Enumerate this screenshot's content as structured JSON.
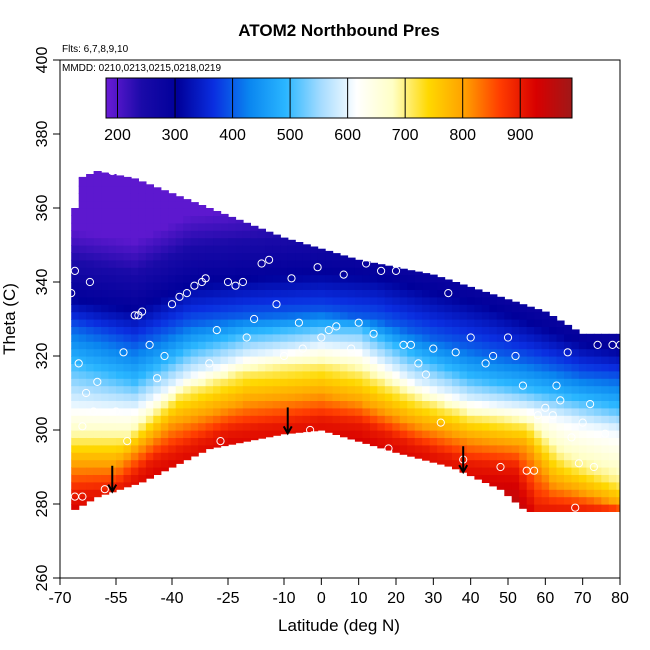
{
  "chart_data": {
    "type": "heatmap",
    "title": "ATOM2 Northbound Pres",
    "notes": [
      "Flts: 6,7,8,9,10",
      "MMDD: 0210,0213,0215,0218,0219"
    ],
    "xlabel": "Latitude (deg N)",
    "ylabel": "Theta (C)",
    "xlim": [
      -70,
      80
    ],
    "ylim": [
      260,
      400
    ],
    "x_ticks": [
      -70,
      -55,
      -40,
      -25,
      -10,
      0,
      10,
      20,
      30,
      40,
      50,
      60,
      70,
      80
    ],
    "y_ticks": [
      260,
      280,
      300,
      320,
      340,
      360,
      380,
      400
    ],
    "colorbar": {
      "range": [
        180,
        990
      ],
      "ticks": [
        200,
        300,
        400,
        500,
        600,
        700,
        800,
        900
      ],
      "colors": [
        "#6a1bd6",
        "#1a0aa8",
        "#00009a",
        "#0a2ee0",
        "#0a86f0",
        "#2ab6ff",
        "#a6dcff",
        "#ffffff",
        "#ffffc6",
        "#ffd800",
        "#ffa000",
        "#ff3c00",
        "#d80000",
        "#a01818"
      ]
    },
    "boundary_top": [
      [
        -67,
        352
      ],
      [
        -65,
        368
      ],
      [
        -60,
        370
      ],
      [
        -50,
        368
      ],
      [
        -30,
        360
      ],
      [
        -10,
        352
      ],
      [
        10,
        346
      ],
      [
        30,
        342
      ],
      [
        45,
        337
      ],
      [
        60,
        332
      ],
      [
        70,
        326
      ],
      [
        80,
        326
      ]
    ],
    "boundary_bottom": [
      [
        -67,
        278
      ],
      [
        -60,
        282
      ],
      [
        -48,
        286
      ],
      [
        -30,
        295
      ],
      [
        -10,
        299
      ],
      [
        0,
        300
      ],
      [
        10,
        297
      ],
      [
        20,
        294
      ],
      [
        35,
        290
      ],
      [
        48,
        284
      ],
      [
        55,
        278
      ],
      [
        80,
        278
      ]
    ],
    "isolines": [
      {
        "level": 300,
        "points": [
          [
            -67,
            336
          ],
          [
            -50,
            333
          ],
          [
            -35,
            340
          ],
          [
            -15,
            342
          ],
          [
            0,
            343
          ],
          [
            15,
            342
          ],
          [
            30,
            338
          ],
          [
            45,
            334
          ],
          [
            55,
            330
          ],
          [
            70,
            324
          ],
          [
            80,
            322
          ]
        ]
      },
      {
        "level": 400,
        "points": [
          [
            -67,
            328
          ],
          [
            -50,
            323
          ],
          [
            -35,
            329
          ],
          [
            -20,
            331
          ],
          [
            0,
            332
          ],
          [
            15,
            330
          ],
          [
            30,
            325
          ],
          [
            45,
            321
          ],
          [
            55,
            319
          ],
          [
            70,
            315
          ],
          [
            80,
            314
          ]
        ]
      },
      {
        "level": 500,
        "points": [
          [
            -67,
            318
          ],
          [
            -50,
            313
          ],
          [
            -35,
            322
          ],
          [
            -20,
            326
          ],
          [
            0,
            328
          ],
          [
            10,
            328
          ],
          [
            25,
            320
          ],
          [
            40,
            314
          ],
          [
            55,
            311
          ],
          [
            70,
            308
          ],
          [
            80,
            306
          ]
        ]
      },
      {
        "level": 600,
        "points": [
          [
            -67,
            307
          ],
          [
            -50,
            306
          ],
          [
            -35,
            315
          ],
          [
            -20,
            320
          ],
          [
            0,
            323
          ],
          [
            10,
            322
          ],
          [
            25,
            313
          ],
          [
            40,
            308
          ],
          [
            55,
            306
          ],
          [
            70,
            302
          ],
          [
            80,
            300
          ]
        ]
      },
      {
        "level": 700,
        "points": [
          [
            -67,
            298
          ],
          [
            -52,
            298
          ],
          [
            -38,
            310
          ],
          [
            -20,
            316
          ],
          [
            0,
            318
          ],
          [
            10,
            316
          ],
          [
            25,
            309
          ],
          [
            40,
            304
          ],
          [
            55,
            302
          ],
          [
            65,
            292
          ],
          [
            80,
            286
          ]
        ]
      },
      {
        "level": 800,
        "points": [
          [
            -67,
            291
          ],
          [
            -55,
            291
          ],
          [
            -40,
            302
          ],
          [
            -20,
            308
          ],
          [
            0,
            310
          ],
          [
            10,
            308
          ],
          [
            25,
            302
          ],
          [
            40,
            298
          ],
          [
            55,
            296
          ],
          [
            62,
            286
          ],
          [
            80,
            280
          ]
        ]
      },
      {
        "level": 900,
        "points": [
          [
            -67,
            283
          ],
          [
            -55,
            284
          ],
          [
            -45,
            292
          ],
          [
            -25,
            300
          ],
          [
            0,
            303
          ],
          [
            10,
            302
          ],
          [
            25,
            296
          ],
          [
            40,
            291
          ],
          [
            52,
            290
          ],
          [
            58,
            279
          ],
          [
            80,
            278
          ]
        ]
      }
    ],
    "observations": [
      [
        -67,
        337
      ],
      [
        -66,
        343
      ],
      [
        -65,
        318
      ],
      [
        -64,
        301
      ],
      [
        -63,
        310
      ],
      [
        -62,
        340
      ],
      [
        -66,
        282
      ],
      [
        -64,
        282
      ],
      [
        -61,
        305
      ],
      [
        -60,
        313
      ],
      [
        -58,
        284
      ],
      [
        -56,
        370
      ],
      [
        -55,
        305
      ],
      [
        -53,
        321
      ],
      [
        -52,
        297
      ],
      [
        -50,
        331
      ],
      [
        -49,
        331
      ],
      [
        -48,
        332
      ],
      [
        -46,
        323
      ],
      [
        -44,
        314
      ],
      [
        -42,
        320
      ],
      [
        -41,
        285
      ],
      [
        -40,
        334
      ],
      [
        -38,
        336
      ],
      [
        -36,
        337
      ],
      [
        -34,
        339
      ],
      [
        -32,
        340
      ],
      [
        -31,
        341
      ],
      [
        -30,
        318
      ],
      [
        -28,
        327
      ],
      [
        -27,
        297
      ],
      [
        -25,
        340
      ],
      [
        -23,
        339
      ],
      [
        -21,
        340
      ],
      [
        -20,
        325
      ],
      [
        -18,
        330
      ],
      [
        -16,
        345
      ],
      [
        -14,
        346
      ],
      [
        -12,
        334
      ],
      [
        -10,
        320
      ],
      [
        -8,
        341
      ],
      [
        -6,
        329
      ],
      [
        -5,
        322
      ],
      [
        -3,
        300
      ],
      [
        -1,
        344
      ],
      [
        0,
        325
      ],
      [
        2,
        327
      ],
      [
        4,
        328
      ],
      [
        6,
        342
      ],
      [
        8,
        322
      ],
      [
        10,
        329
      ],
      [
        12,
        345
      ],
      [
        14,
        326
      ],
      [
        16,
        343
      ],
      [
        18,
        295
      ],
      [
        20,
        343
      ],
      [
        22,
        323
      ],
      [
        24,
        323
      ],
      [
        26,
        318
      ],
      [
        28,
        315
      ],
      [
        30,
        322
      ],
      [
        32,
        302
      ],
      [
        34,
        337
      ],
      [
        36,
        321
      ],
      [
        38,
        292
      ],
      [
        40,
        325
      ],
      [
        42,
        344
      ],
      [
        44,
        318
      ],
      [
        46,
        320
      ],
      [
        48,
        290
      ],
      [
        50,
        325
      ],
      [
        52,
        320
      ],
      [
        54,
        312
      ],
      [
        55,
        289
      ],
      [
        57,
        289
      ],
      [
        58,
        304
      ],
      [
        60,
        306
      ],
      [
        62,
        304
      ],
      [
        63,
        312
      ],
      [
        64,
        308
      ],
      [
        66,
        321
      ],
      [
        67,
        298
      ],
      [
        68,
        279
      ],
      [
        69,
        291
      ],
      [
        70,
        302
      ],
      [
        72,
        307
      ],
      [
        73,
        290
      ],
      [
        74,
        323
      ],
      [
        76,
        299
      ],
      [
        78,
        323
      ],
      [
        80,
        323
      ]
    ],
    "arrows_x": [
      -56,
      -9,
      38
    ]
  }
}
